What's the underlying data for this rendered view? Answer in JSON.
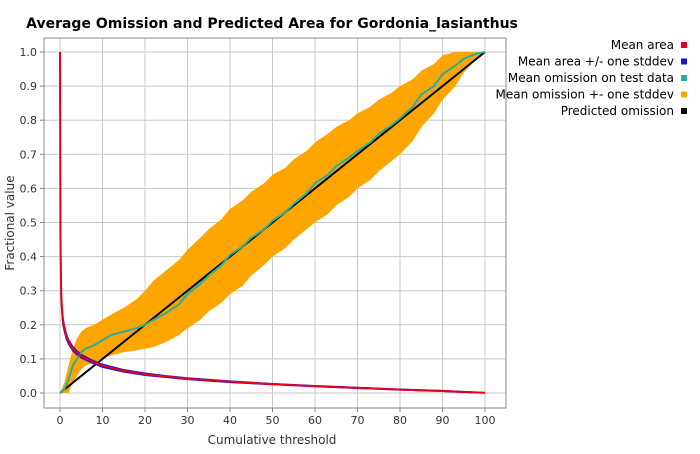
{
  "chart_data": {
    "type": "line",
    "title": "Average Omission and Predicted Area for Gordonia_lasianthus",
    "xlabel": "Cumulative threshold",
    "ylabel": "Fractional value",
    "xlim": [
      0,
      100
    ],
    "ylim": [
      0,
      1.0
    ],
    "x_ticks": [
      "0",
      "10",
      "20",
      "30",
      "40",
      "50",
      "60",
      "70",
      "80",
      "90",
      "100"
    ],
    "y_ticks": [
      "0.0",
      "0.1",
      "0.2",
      "0.3",
      "0.4",
      "0.5",
      "0.6",
      "0.7",
      "0.8",
      "0.9",
      "1.0"
    ],
    "grid": true,
    "legend_position": "top-right",
    "legend": [
      {
        "label": "Mean area",
        "color": "#e8001c"
      },
      {
        "label": "Mean area +/- one stddev",
        "color": "#1515d4"
      },
      {
        "label": "Mean omission on test data",
        "color": "#22b0a0"
      },
      {
        "label": "Mean omission +- one stddev",
        "color": "#ffa500"
      },
      {
        "label": "Predicted omission",
        "color": "#000000"
      }
    ],
    "series": [
      {
        "name": "Mean area",
        "color": "#e8001c",
        "x": [
          0,
          0.1,
          0.2,
          0.3,
          0.5,
          0.7,
          1,
          1.5,
          2,
          3,
          4,
          5,
          7,
          10,
          15,
          20,
          25,
          30,
          40,
          50,
          60,
          70,
          80,
          90,
          95,
          100
        ],
        "y": [
          1.0,
          0.47,
          0.35,
          0.28,
          0.24,
          0.21,
          0.19,
          0.165,
          0.15,
          0.13,
          0.118,
          0.108,
          0.095,
          0.08,
          0.065,
          0.055,
          0.048,
          0.042,
          0.033,
          0.026,
          0.02,
          0.015,
          0.01,
          0.006,
          0.003,
          0.001
        ]
      },
      {
        "name": "Mean area +/- one stddev",
        "color": "#1515d4",
        "x": [
          0,
          0.1,
          0.2,
          0.3,
          0.5,
          0.7,
          1,
          1.5,
          2,
          3,
          4,
          5,
          7,
          10,
          15,
          20,
          25,
          30,
          40,
          50,
          60,
          70,
          80,
          90,
          95,
          100
        ],
        "upper": [
          1.0,
          0.48,
          0.36,
          0.29,
          0.25,
          0.22,
          0.198,
          0.172,
          0.156,
          0.136,
          0.123,
          0.113,
          0.099,
          0.084,
          0.068,
          0.058,
          0.05,
          0.044,
          0.035,
          0.027,
          0.021,
          0.016,
          0.011,
          0.007,
          0.004,
          0.001
        ],
        "lower": [
          1.0,
          0.46,
          0.34,
          0.27,
          0.23,
          0.2,
          0.182,
          0.158,
          0.144,
          0.124,
          0.113,
          0.103,
          0.091,
          0.076,
          0.062,
          0.052,
          0.046,
          0.04,
          0.031,
          0.025,
          0.019,
          0.014,
          0.009,
          0.005,
          0.002,
          0.001
        ]
      },
      {
        "name": "Mean omission on test data",
        "color": "#22b0a0",
        "x": [
          0,
          1,
          2,
          3,
          4,
          5,
          6,
          8,
          10,
          12,
          15,
          18,
          20,
          22,
          25,
          28,
          30,
          33,
          35,
          38,
          40,
          43,
          45,
          48,
          50,
          53,
          55,
          58,
          60,
          63,
          65,
          68,
          70,
          73,
          75,
          78,
          80,
          83,
          85,
          88,
          90,
          93,
          95,
          98,
          100
        ],
        "y": [
          0,
          0.01,
          0.04,
          0.08,
          0.1,
          0.12,
          0.13,
          0.14,
          0.155,
          0.17,
          0.18,
          0.19,
          0.2,
          0.215,
          0.235,
          0.26,
          0.29,
          0.32,
          0.345,
          0.375,
          0.405,
          0.43,
          0.455,
          0.48,
          0.505,
          0.53,
          0.555,
          0.585,
          0.615,
          0.64,
          0.665,
          0.69,
          0.71,
          0.735,
          0.76,
          0.785,
          0.805,
          0.84,
          0.875,
          0.9,
          0.935,
          0.96,
          0.98,
          0.995,
          1.0
        ]
      },
      {
        "name": "Mean omission +- one stddev",
        "color": "#ffa500",
        "x": [
          0,
          1,
          2,
          3,
          4,
          5,
          6,
          8,
          10,
          12,
          15,
          18,
          20,
          22,
          25,
          28,
          30,
          33,
          35,
          38,
          40,
          43,
          45,
          48,
          50,
          53,
          55,
          58,
          60,
          63,
          65,
          68,
          70,
          73,
          75,
          78,
          80,
          83,
          85,
          88,
          90,
          93,
          95,
          98,
          100
        ],
        "upper": [
          0,
          0.03,
          0.08,
          0.13,
          0.16,
          0.18,
          0.19,
          0.2,
          0.215,
          0.23,
          0.25,
          0.275,
          0.3,
          0.33,
          0.36,
          0.39,
          0.42,
          0.455,
          0.48,
          0.51,
          0.54,
          0.565,
          0.59,
          0.615,
          0.64,
          0.66,
          0.685,
          0.71,
          0.735,
          0.76,
          0.78,
          0.8,
          0.82,
          0.84,
          0.86,
          0.88,
          0.9,
          0.92,
          0.945,
          0.965,
          0.99,
          1.0,
          1.0,
          1.0,
          1.0
        ],
        "lower": [
          0,
          0.0,
          0.0,
          0.03,
          0.05,
          0.07,
          0.08,
          0.09,
          0.1,
          0.11,
          0.12,
          0.125,
          0.13,
          0.135,
          0.15,
          0.17,
          0.19,
          0.215,
          0.24,
          0.265,
          0.29,
          0.315,
          0.345,
          0.375,
          0.4,
          0.425,
          0.45,
          0.48,
          0.5,
          0.525,
          0.55,
          0.575,
          0.6,
          0.625,
          0.65,
          0.68,
          0.7,
          0.74,
          0.78,
          0.82,
          0.86,
          0.9,
          0.94,
          0.98,
          1.0
        ]
      },
      {
        "name": "Predicted omission",
        "color": "#000000",
        "x": [
          0,
          100
        ],
        "y": [
          0,
          1
        ]
      }
    ]
  }
}
